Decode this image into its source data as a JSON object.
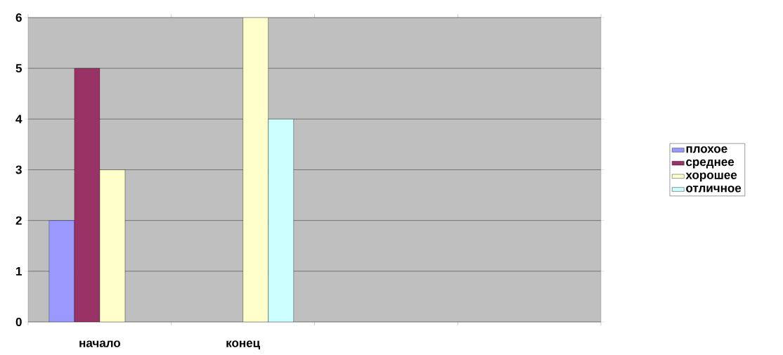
{
  "chart_data": {
    "type": "bar",
    "categories": [
      "начало",
      "конец",
      null,
      null
    ],
    "series": [
      {
        "name": "плохое",
        "color": "#9999ff",
        "values": [
          2,
          null,
          null,
          null
        ]
      },
      {
        "name": "среднее",
        "color": "#993366",
        "values": [
          5,
          null,
          null,
          null
        ]
      },
      {
        "name": "хорошее",
        "color": "#ffffcc",
        "values": [
          3,
          6,
          null,
          null
        ]
      },
      {
        "name": "отличное",
        "color": "#ccffff",
        "values": [
          null,
          4,
          null,
          null
        ]
      }
    ],
    "ylim": [
      0,
      6
    ],
    "yticks": [
      0,
      1,
      2,
      3,
      4,
      5,
      6
    ],
    "grid": "y",
    "legend": "right"
  }
}
